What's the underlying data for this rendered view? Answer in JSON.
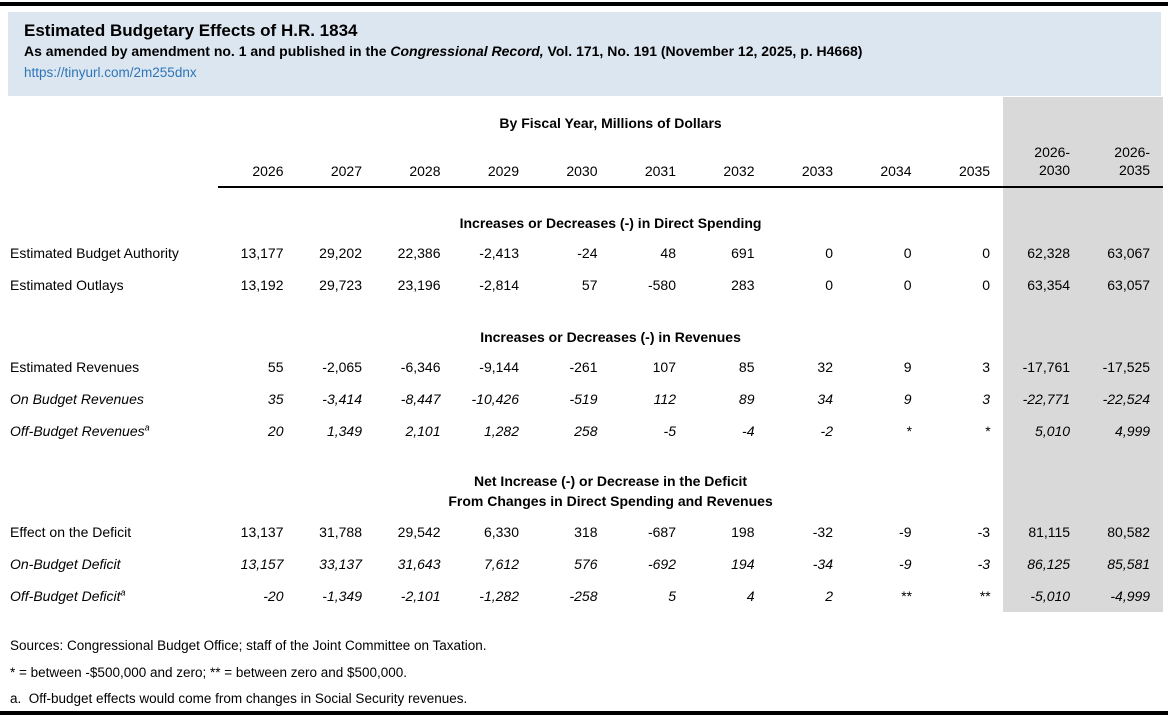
{
  "header": {
    "title": "Estimated Budgetary Effects of H.R. 1834",
    "subtitle_prefix": "As amended by amendment no. 1 and published in the ",
    "subtitle_italic": "Congressional Record,",
    "subtitle_suffix": " Vol. 171, No. 191 (November 12, 2025, p. H4668)",
    "link": "https://tinyurl.com/2m255dnx"
  },
  "colors": {
    "header_bg": "#dce6f1",
    "link": "#2e75b6",
    "shade": "#d9d9d9",
    "bar": "#000000"
  },
  "table": {
    "unit_header": "By Fiscal Year, Millions of Dollars",
    "year_columns": [
      "2026",
      "2027",
      "2028",
      "2029",
      "2030",
      "2031",
      "2032",
      "2033",
      "2034",
      "2035"
    ],
    "summary_columns": [
      {
        "line1": "2026-",
        "line2": "2030"
      },
      {
        "line1": "2026-",
        "line2": "2035"
      }
    ],
    "sections": [
      {
        "header_lines": [
          "Increases or Decreases (-) in Direct Spending"
        ],
        "rows": [
          {
            "label": "Estimated Budget Authority",
            "italic": false,
            "sup": "",
            "values": [
              "13,177",
              "29,202",
              "22,386",
              "-2,413",
              "-24",
              "48",
              "691",
              "0",
              "0",
              "0",
              "62,328",
              "63,067"
            ]
          },
          {
            "label": "Estimated Outlays",
            "italic": false,
            "sup": "",
            "values": [
              "13,192",
              "29,723",
              "23,196",
              "-2,814",
              "57",
              "-580",
              "283",
              "0",
              "0",
              "0",
              "63,354",
              "63,057"
            ]
          }
        ]
      },
      {
        "header_lines": [
          "Increases or Decreases (-) in Revenues"
        ],
        "rows": [
          {
            "label": "Estimated Revenues",
            "italic": false,
            "sup": "",
            "values": [
              "55",
              "-2,065",
              "-6,346",
              "-9,144",
              "-261",
              "107",
              "85",
              "32",
              "9",
              "3",
              "-17,761",
              "-17,525"
            ]
          },
          {
            "label": "On Budget Revenues",
            "italic": true,
            "sup": "",
            "values": [
              "35",
              "-3,414",
              "-8,447",
              "-10,426",
              "-519",
              "112",
              "89",
              "34",
              "9",
              "3",
              "-22,771",
              "-22,524"
            ]
          },
          {
            "label": "Off-Budget Revenues",
            "italic": true,
            "sup": "a",
            "values": [
              "20",
              "1,349",
              "2,101",
              "1,282",
              "258",
              "-5",
              "-4",
              "-2",
              "*",
              "*",
              "5,010",
              "4,999"
            ]
          }
        ]
      },
      {
        "header_lines": [
          "Net Increase (-) or Decrease in the Deficit",
          "From Changes in Direct Spending and Revenues"
        ],
        "rows": [
          {
            "label": "Effect on the Deficit",
            "italic": false,
            "sup": "",
            "values": [
              "13,137",
              "31,788",
              "29,542",
              "6,330",
              "318",
              "-687",
              "198",
              "-32",
              "-9",
              "-3",
              "81,115",
              "80,582"
            ]
          },
          {
            "label": "On-Budget Deficit",
            "italic": true,
            "sup": "",
            "values": [
              "13,157",
              "33,137",
              "31,643",
              "7,612",
              "576",
              "-692",
              "194",
              "-34",
              "-9",
              "-3",
              "86,125",
              "85,581"
            ]
          },
          {
            "label": "Off-Budget Deficit",
            "italic": true,
            "sup": "a",
            "values": [
              "-20",
              "-1,349",
              "-2,101",
              "-1,282",
              "-258",
              "5",
              "4",
              "2",
              "**",
              "**",
              "-5,010",
              "-4,999"
            ]
          }
        ]
      }
    ]
  },
  "footnotes": [
    "Sources: Congressional Budget Office; staff of the Joint Committee on Taxation.",
    "* = between -$500,000 and zero; ** = between zero and $500,000.",
    "a.  Off-budget effects would come from changes in Social Security revenues."
  ]
}
